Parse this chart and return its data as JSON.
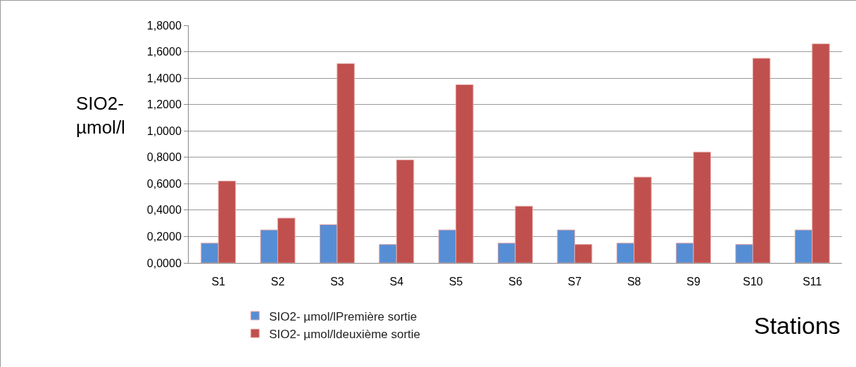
{
  "chart_data": {
    "type": "bar",
    "xlabel": "Stations",
    "ylabel": "SIO2-\nµmol/l",
    "categories": [
      "S1",
      "S2",
      "S3",
      "S4",
      "S5",
      "S6",
      "S7",
      "S8",
      "S9",
      "S10",
      "S11"
    ],
    "series": [
      {
        "name": "SIO2- µmol/lPremière sortie",
        "color": "#558ed5",
        "values": [
          0.15,
          0.25,
          0.29,
          0.14,
          0.25,
          0.15,
          0.25,
          0.15,
          0.15,
          0.14,
          0.25
        ]
      },
      {
        "name": "SIO2- µmol/ldeuxième sortie",
        "color": "#c0504d",
        "values": [
          0.62,
          0.34,
          1.51,
          0.78,
          1.35,
          0.43,
          0.14,
          0.65,
          0.84,
          1.55,
          1.66
        ]
      }
    ],
    "ylim": [
      0,
      1.8
    ],
    "yticks": [
      {
        "value": 0,
        "label": "0,0000"
      },
      {
        "value": 0.2,
        "label": "0,2000"
      },
      {
        "value": 0.4,
        "label": "0,4000"
      },
      {
        "value": 0.6,
        "label": "0,6000"
      },
      {
        "value": 0.8,
        "label": "0,8000"
      },
      {
        "value": 1,
        "label": "1,0000"
      },
      {
        "value": 1.2,
        "label": "1,2000"
      },
      {
        "value": 1.4,
        "label": "1,4000"
      },
      {
        "value": 1.6,
        "label": "1,6000"
      },
      {
        "value": 1.8,
        "label": "1,8000"
      }
    ],
    "grid": "y",
    "legend": "bottom"
  }
}
